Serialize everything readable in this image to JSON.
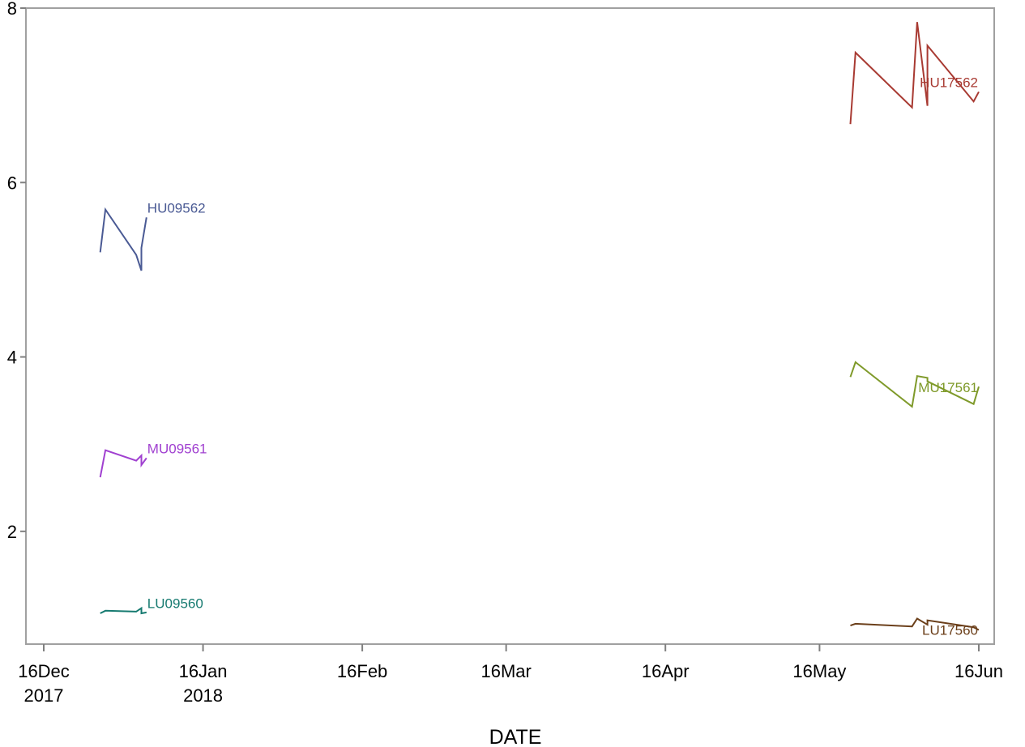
{
  "chart_data": {
    "type": "line",
    "title": "",
    "xlabel": "DATE",
    "ylabel": "",
    "x_axis_type": "date",
    "xlim": [
      "2017-12-16",
      "2018-06-19"
    ],
    "ylim": [
      0.8,
      8.0
    ],
    "grid": false,
    "legend": "none (series labeled inline at line ends)",
    "x_ticks": [
      {
        "value": "2017-12-16",
        "label": "16Dec",
        "sublabel": "2017"
      },
      {
        "value": "2018-01-16",
        "label": "16Jan",
        "sublabel": "2018"
      },
      {
        "value": "2018-02-16",
        "label": "16Feb",
        "sublabel": ""
      },
      {
        "value": "2018-03-16",
        "label": "16Mar",
        "sublabel": ""
      },
      {
        "value": "2018-04-16",
        "label": "16Apr",
        "sublabel": ""
      },
      {
        "value": "2018-05-16",
        "label": "16May",
        "sublabel": ""
      },
      {
        "value": "2018-06-16",
        "label": "16Jun",
        "sublabel": ""
      }
    ],
    "y_ticks": [
      {
        "value": 2,
        "label": "2"
      },
      {
        "value": 4,
        "label": "4"
      },
      {
        "value": 6,
        "label": "6"
      },
      {
        "value": 8,
        "label": "8"
      }
    ],
    "series": [
      {
        "name": "HU09562",
        "color": "#4a5a94",
        "points": [
          {
            "x": "2017-12-27",
            "y": 5.2
          },
          {
            "x": "2017-12-28",
            "y": 5.69
          },
          {
            "x": "2018-01-03",
            "y": 5.17
          },
          {
            "x": "2018-01-04",
            "y": 4.99
          },
          {
            "x": "2018-01-04",
            "y": 5.25
          },
          {
            "x": "2018-01-05",
            "y": 5.6
          }
        ]
      },
      {
        "name": "MU09561",
        "color": "#a040d0",
        "points": [
          {
            "x": "2017-12-27",
            "y": 2.62
          },
          {
            "x": "2017-12-28",
            "y": 2.93
          },
          {
            "x": "2018-01-03",
            "y": 2.81
          },
          {
            "x": "2018-01-04",
            "y": 2.87
          },
          {
            "x": "2018-01-04",
            "y": 2.76
          },
          {
            "x": "2018-01-05",
            "y": 2.84
          }
        ]
      },
      {
        "name": "LU09560",
        "color": "#167a70",
        "points": [
          {
            "x": "2017-12-27",
            "y": 1.06
          },
          {
            "x": "2017-12-28",
            "y": 1.09
          },
          {
            "x": "2018-01-03",
            "y": 1.08
          },
          {
            "x": "2018-01-04",
            "y": 1.12
          },
          {
            "x": "2018-01-04",
            "y": 1.06
          },
          {
            "x": "2018-01-05",
            "y": 1.07
          }
        ]
      },
      {
        "name": "HU17562",
        "color": "#a83a32",
        "points": [
          {
            "x": "2018-05-22",
            "y": 6.67
          },
          {
            "x": "2018-05-23",
            "y": 7.49
          },
          {
            "x": "2018-06-03",
            "y": 6.86
          },
          {
            "x": "2018-06-04",
            "y": 7.84
          },
          {
            "x": "2018-06-06",
            "y": 6.88
          },
          {
            "x": "2018-06-06",
            "y": 7.57
          },
          {
            "x": "2018-06-15",
            "y": 6.93
          },
          {
            "x": "2018-06-16",
            "y": 7.04
          }
        ]
      },
      {
        "name": "MU17561",
        "color": "#7f9a2a",
        "points": [
          {
            "x": "2018-05-22",
            "y": 3.77
          },
          {
            "x": "2018-05-23",
            "y": 3.94
          },
          {
            "x": "2018-06-03",
            "y": 3.43
          },
          {
            "x": "2018-06-04",
            "y": 3.78
          },
          {
            "x": "2018-06-06",
            "y": 3.76
          },
          {
            "x": "2018-06-06",
            "y": 3.72
          },
          {
            "x": "2018-06-15",
            "y": 3.46
          },
          {
            "x": "2018-06-16",
            "y": 3.66
          }
        ]
      },
      {
        "name": "LU17560",
        "color": "#6b3f1a",
        "points": [
          {
            "x": "2018-05-22",
            "y": 0.92
          },
          {
            "x": "2018-05-23",
            "y": 0.94
          },
          {
            "x": "2018-06-03",
            "y": 0.91
          },
          {
            "x": "2018-06-04",
            "y": 1.0
          },
          {
            "x": "2018-06-06",
            "y": 0.93
          },
          {
            "x": "2018-06-06",
            "y": 0.98
          },
          {
            "x": "2018-06-15",
            "y": 0.9
          },
          {
            "x": "2018-06-16",
            "y": 0.87
          }
        ]
      }
    ]
  }
}
